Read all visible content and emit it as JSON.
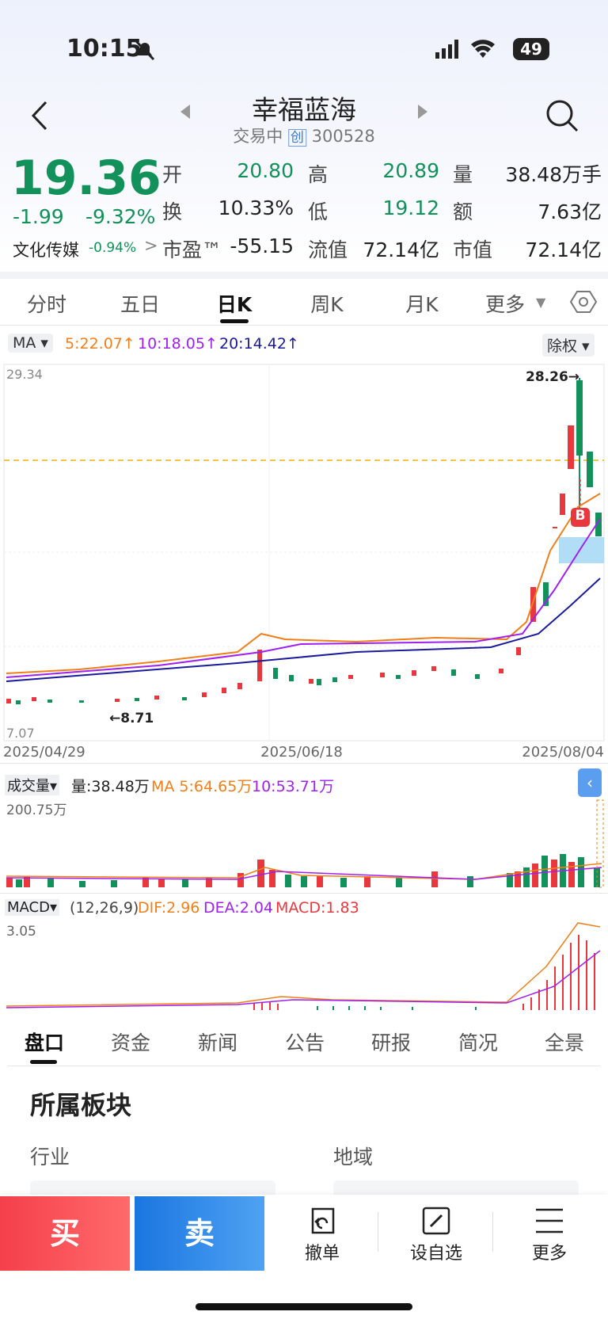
{
  "status_bar": {
    "time": "10:15",
    "battery": "49"
  },
  "header": {
    "title": "幸福蓝海",
    "status": "交易中",
    "board": "创",
    "code": "300528"
  },
  "quote": {
    "price": "19.36",
    "change": "-1.99",
    "change_pct": "-9.32%",
    "sector": "文化传媒",
    "sector_pct": "-0.94%",
    "fields": [
      {
        "label": "开",
        "value": "20.80"
      },
      {
        "label": "高",
        "value": "20.89"
      },
      {
        "label": "量",
        "value": "38.48万手"
      },
      {
        "label": "换",
        "value": "10.33%"
      },
      {
        "label": "低",
        "value": "19.12"
      },
      {
        "label": "额",
        "value": "7.63亿"
      },
      {
        "label": "市盈™",
        "value": "-55.15"
      },
      {
        "label": "流值",
        "value": "72.14亿"
      },
      {
        "label": "市值",
        "value": "72.14亿"
      }
    ]
  },
  "tabs": [
    "分时",
    "五日",
    "日K",
    "周K",
    "月K",
    "更多"
  ],
  "kline": {
    "indicator": "MA",
    "ma": [
      "5:22.07",
      "10:18.05",
      "20:14.42"
    ],
    "adjust": "除权",
    "high_label": "29.34",
    "low_label": "7.07",
    "max_marker": "28.26",
    "min_marker": "8.71",
    "dates": [
      "2025/04/29",
      "2025/06/18",
      "2025/08/04"
    ],
    "signal": "B"
  },
  "volume": {
    "label": "成交量",
    "vol": "量:38.48万",
    "ma": [
      "MA 5:64.65万",
      "10:53.71万"
    ],
    "max": "200.75万"
  },
  "macd": {
    "label": "MACD",
    "params": "(12,26,9)",
    "dif": "DIF:2.96",
    "dea": "DEA:2.04",
    "macd": "MACD:1.83",
    "max": "3.05"
  },
  "bottom_tabs": [
    "盘口",
    "资金",
    "新闻",
    "公告",
    "研报",
    "简况",
    "全景"
  ],
  "section": {
    "title": "所属板块",
    "industry": "行业",
    "region": "地域"
  },
  "actions": [
    "买",
    "卖",
    "撤单",
    "设自选",
    "更多"
  ]
}
